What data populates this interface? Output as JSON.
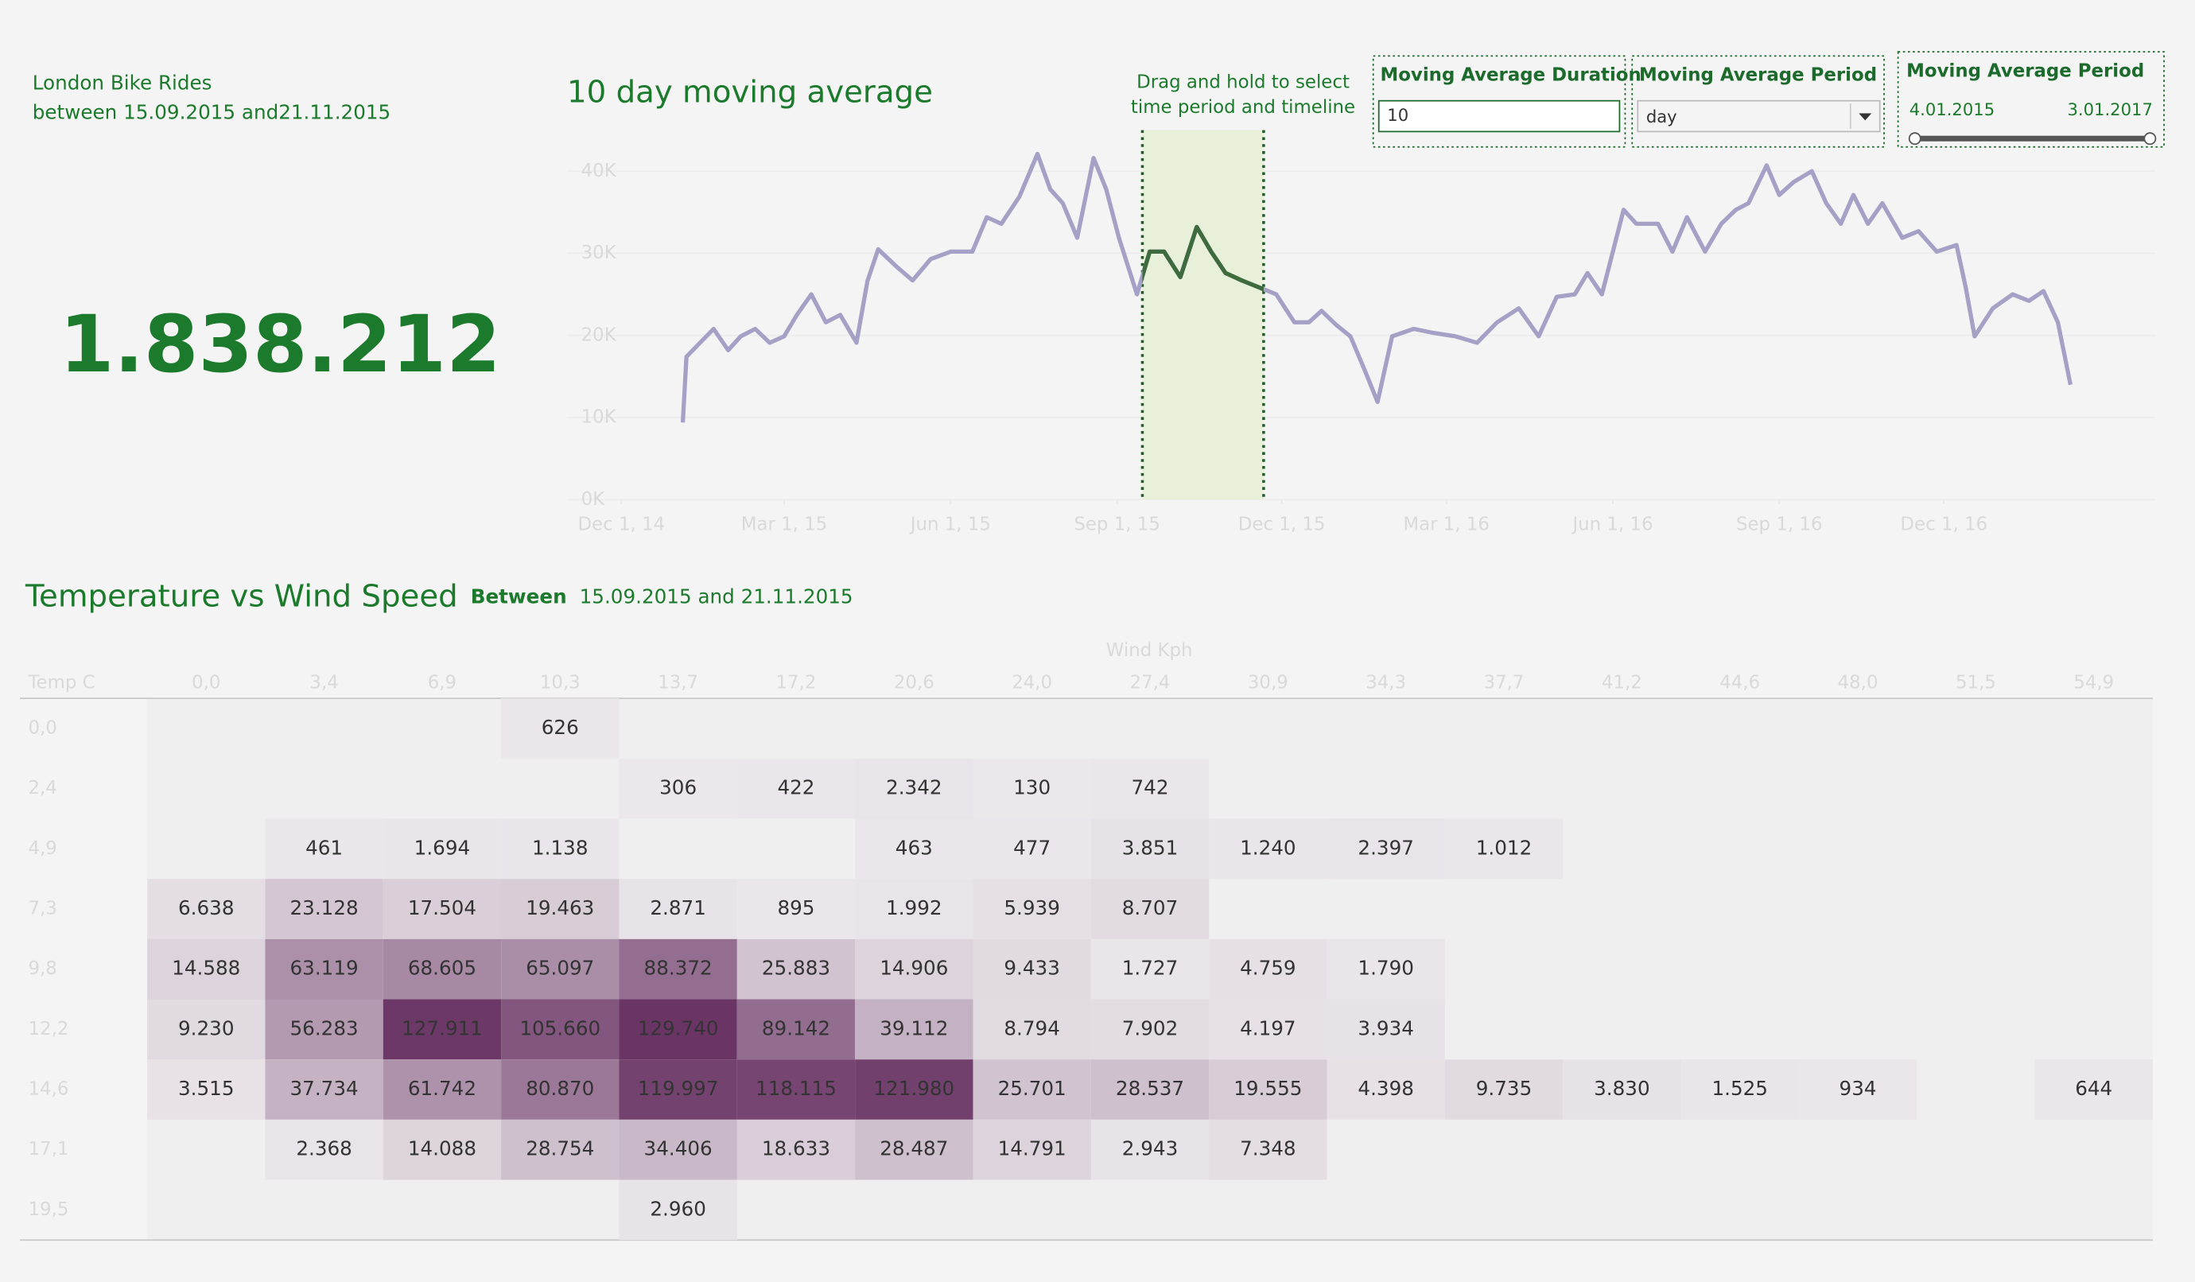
{
  "header": {
    "title": "London Bike Rides",
    "subtitle": "between 15.09.2015 and21.11.2015"
  },
  "kpi": {
    "value": "1.838.212"
  },
  "controls": {
    "duration": {
      "label": "Moving Average Duration",
      "value": "10"
    },
    "period": {
      "label": "Moving Average Period",
      "value": "day"
    },
    "range": {
      "label": "Moving Average Period",
      "start": "4.01.2015",
      "end": "3.01.2017"
    }
  },
  "chart_data": [
    {
      "type": "line",
      "title": "10 day moving average",
      "annotation": [
        "Drag and hold to select",
        "time period and timeline"
      ],
      "x": [
        "2015-01-04",
        "2015-01-06",
        "2015-01-13",
        "2015-01-21",
        "2015-01-29",
        "2015-02-05",
        "2015-02-13",
        "2015-02-21",
        "2015-03-01",
        "2015-03-08",
        "2015-03-16",
        "2015-03-24",
        "2015-04-01",
        "2015-04-10",
        "2015-04-16",
        "2015-04-22",
        "2015-05-02",
        "2015-05-11",
        "2015-05-21",
        "2015-06-01",
        "2015-06-13",
        "2015-06-21",
        "2015-06-29",
        "2015-07-09",
        "2015-07-19",
        "2015-07-26",
        "2015-08-02",
        "2015-08-10",
        "2015-08-19",
        "2015-08-26",
        "2015-09-02",
        "2015-09-12",
        "2015-09-19",
        "2015-09-27",
        "2015-10-06",
        "2015-10-15",
        "2015-10-23",
        "2015-10-31",
        "2015-11-09",
        "2015-11-18",
        "2015-11-28",
        "2015-12-08",
        "2015-12-16",
        "2015-12-23",
        "2015-12-31",
        "2016-01-08",
        "2016-01-16",
        "2016-01-23",
        "2016-01-31",
        "2016-02-12",
        "2016-02-23",
        "2016-03-06",
        "2016-03-18",
        "2016-03-29",
        "2016-04-10",
        "2016-04-21",
        "2016-05-01",
        "2016-05-11",
        "2016-05-18",
        "2016-05-26",
        "2016-06-07",
        "2016-06-14",
        "2016-06-26",
        "2016-07-04",
        "2016-07-12",
        "2016-07-22",
        "2016-07-31",
        "2016-08-08",
        "2016-08-15",
        "2016-08-25",
        "2016-09-01",
        "2016-09-09",
        "2016-09-19",
        "2016-09-27",
        "2016-10-05",
        "2016-10-12",
        "2016-10-20",
        "2016-10-28",
        "2016-11-08",
        "2016-11-17",
        "2016-11-27",
        "2016-12-08",
        "2016-12-13",
        "2016-12-18",
        "2016-12-28",
        "2017-01-08",
        "2017-01-17",
        "2017-01-25",
        "2017-02-02",
        "2017-02-09"
      ],
      "values": [
        9400,
        17400,
        19000,
        20800,
        18200,
        19900,
        20800,
        19100,
        19900,
        22500,
        25000,
        21600,
        22500,
        19100,
        26600,
        30500,
        28400,
        26700,
        29300,
        30200,
        30200,
        34400,
        33600,
        36900,
        42100,
        37800,
        36100,
        31900,
        41600,
        37800,
        31900,
        25000,
        30200,
        30200,
        27100,
        33200,
        30200,
        27600,
        26700,
        25900,
        25000,
        21600,
        21600,
        23000,
        21300,
        19900,
        15700,
        11900,
        19900,
        20800,
        20300,
        19900,
        19100,
        21600,
        23300,
        19900,
        24700,
        25000,
        27600,
        25000,
        35300,
        33600,
        33600,
        30200,
        34400,
        30200,
        33600,
        35300,
        36100,
        40700,
        37100,
        38700,
        40000,
        36100,
        33600,
        37100,
        33600,
        36100,
        31900,
        32700,
        30200,
        31000,
        25900,
        19900,
        23300,
        25000,
        24200,
        25400,
        21600,
        14000
      ],
      "color": "#a5a0c6",
      "highlight_color": "#3d6b3d",
      "selection": [
        "2015-09-15",
        "2015-11-21"
      ],
      "xlim": [
        "2014-11-01",
        "2017-03-28"
      ],
      "xticks": [
        {
          "value": "2014-12-01",
          "label": "Dec 1, 14"
        },
        {
          "value": "2015-03-01",
          "label": "Mar 1, 15"
        },
        {
          "value": "2015-06-01",
          "label": "Jun 1, 15"
        },
        {
          "value": "2015-09-01",
          "label": "Sep 1, 15"
        },
        {
          "value": "2015-12-01",
          "label": "Dec 1, 15"
        },
        {
          "value": "2016-03-01",
          "label": "Mar 1, 16"
        },
        {
          "value": "2016-06-01",
          "label": "Jun 1, 16"
        },
        {
          "value": "2016-09-01",
          "label": "Sep 1, 16"
        },
        {
          "value": "2016-12-01",
          "label": "Dec 1, 16"
        }
      ],
      "ylim": [
        0,
        45000
      ],
      "yticks": [
        {
          "value": 0,
          "label": "0K"
        },
        {
          "value": 10000,
          "label": "10K"
        },
        {
          "value": 20000,
          "label": "20K"
        },
        {
          "value": 30000,
          "label": "30K"
        },
        {
          "value": 40000,
          "label": "40K"
        }
      ],
      "grid": true
    },
    {
      "type": "heatmap",
      "title": "Temperature vs Wind Speed",
      "subtitle_label": "Between",
      "subtitle": "15.09.2015 and 21.11.2015",
      "x_title": "Wind Kph",
      "y_title": "Temp C",
      "columns": [
        "0,0",
        "3,4",
        "6,9",
        "10,3",
        "13,7",
        "17,2",
        "20,6",
        "24,0",
        "27,4",
        "30,9",
        "34,3",
        "37,7",
        "41,2",
        "44,6",
        "48,0",
        "51,5",
        "54,9"
      ],
      "rows": [
        "0,0",
        "2,4",
        "4,9",
        "7,3",
        "9,8",
        "12,2",
        "14,6",
        "17,1",
        "19,5"
      ],
      "values": [
        [
          null,
          null,
          null,
          626,
          null,
          null,
          null,
          null,
          null,
          null,
          null,
          null,
          null,
          null,
          null,
          null,
          null
        ],
        [
          null,
          null,
          null,
          null,
          306,
          422,
          2342,
          130,
          742,
          null,
          null,
          null,
          null,
          null,
          null,
          null,
          null
        ],
        [
          null,
          461,
          1694,
          1138,
          null,
          null,
          463,
          477,
          3851,
          1240,
          2397,
          1012,
          null,
          null,
          null,
          null,
          null
        ],
        [
          6638,
          23128,
          17504,
          19463,
          2871,
          895,
          1992,
          5939,
          8707,
          null,
          null,
          null,
          null,
          null,
          null,
          null,
          null
        ],
        [
          14588,
          63119,
          68605,
          65097,
          88372,
          25883,
          14906,
          9433,
          1727,
          4759,
          1790,
          null,
          null,
          null,
          null,
          null,
          null
        ],
        [
          9230,
          56283,
          127911,
          105660,
          129740,
          89142,
          39112,
          8794,
          7902,
          4197,
          3934,
          null,
          null,
          null,
          null,
          null,
          null
        ],
        [
          3515,
          37734,
          61742,
          80870,
          119997,
          118115,
          121980,
          25701,
          28537,
          19555,
          4398,
          9735,
          3830,
          1525,
          934,
          null,
          644
        ],
        [
          null,
          2368,
          14088,
          28754,
          34406,
          18633,
          28487,
          14791,
          2943,
          7348,
          null,
          null,
          null,
          null,
          null,
          null,
          null
        ],
        [
          null,
          null,
          null,
          null,
          2960,
          null,
          null,
          null,
          null,
          null,
          null,
          null,
          null,
          null,
          null,
          null,
          null
        ]
      ],
      "value_labels": [
        [
          null,
          null,
          null,
          "626",
          null,
          null,
          null,
          null,
          null,
          null,
          null,
          null,
          null,
          null,
          null,
          null,
          null
        ],
        [
          null,
          null,
          null,
          null,
          "306",
          "422",
          "2.342",
          "130",
          "742",
          null,
          null,
          null,
          null,
          null,
          null,
          null,
          null
        ],
        [
          null,
          "461",
          "1.694",
          "1.138",
          null,
          null,
          "463",
          "477",
          "3.851",
          "1.240",
          "2.397",
          "1.012",
          null,
          null,
          null,
          null,
          null
        ],
        [
          "6.638",
          "23.128",
          "17.504",
          "19.463",
          "2.871",
          "895",
          "1.992",
          "5.939",
          "8.707",
          null,
          null,
          null,
          null,
          null,
          null,
          null,
          null
        ],
        [
          "14.588",
          "63.119",
          "68.605",
          "65.097",
          "88.372",
          "25.883",
          "14.906",
          "9.433",
          "1.727",
          "4.759",
          "1.790",
          null,
          null,
          null,
          null,
          null,
          null
        ],
        [
          "9.230",
          "56.283",
          "127.911",
          "105.660",
          "129.740",
          "89.142",
          "39.112",
          "8.794",
          "7.902",
          "4.197",
          "3.934",
          null,
          null,
          null,
          null,
          null,
          null
        ],
        [
          "3.515",
          "37.734",
          "61.742",
          "80.870",
          "119.997",
          "118.115",
          "121.980",
          "25.701",
          "28.537",
          "19.555",
          "4.398",
          "9.735",
          "3.830",
          "1.525",
          "934",
          null,
          "644"
        ],
        [
          null,
          "2.368",
          "14.088",
          "28.754",
          "34.406",
          "18.633",
          "28.487",
          "14.791",
          "2.943",
          "7.348",
          null,
          null,
          null,
          null,
          null,
          null,
          null
        ],
        [
          null,
          null,
          null,
          null,
          "2.960",
          null,
          null,
          null,
          null,
          null,
          null,
          null,
          null,
          null,
          null,
          null,
          null
        ]
      ],
      "color_low": "#ebe7eb",
      "color_high": "#6a3565"
    }
  ]
}
